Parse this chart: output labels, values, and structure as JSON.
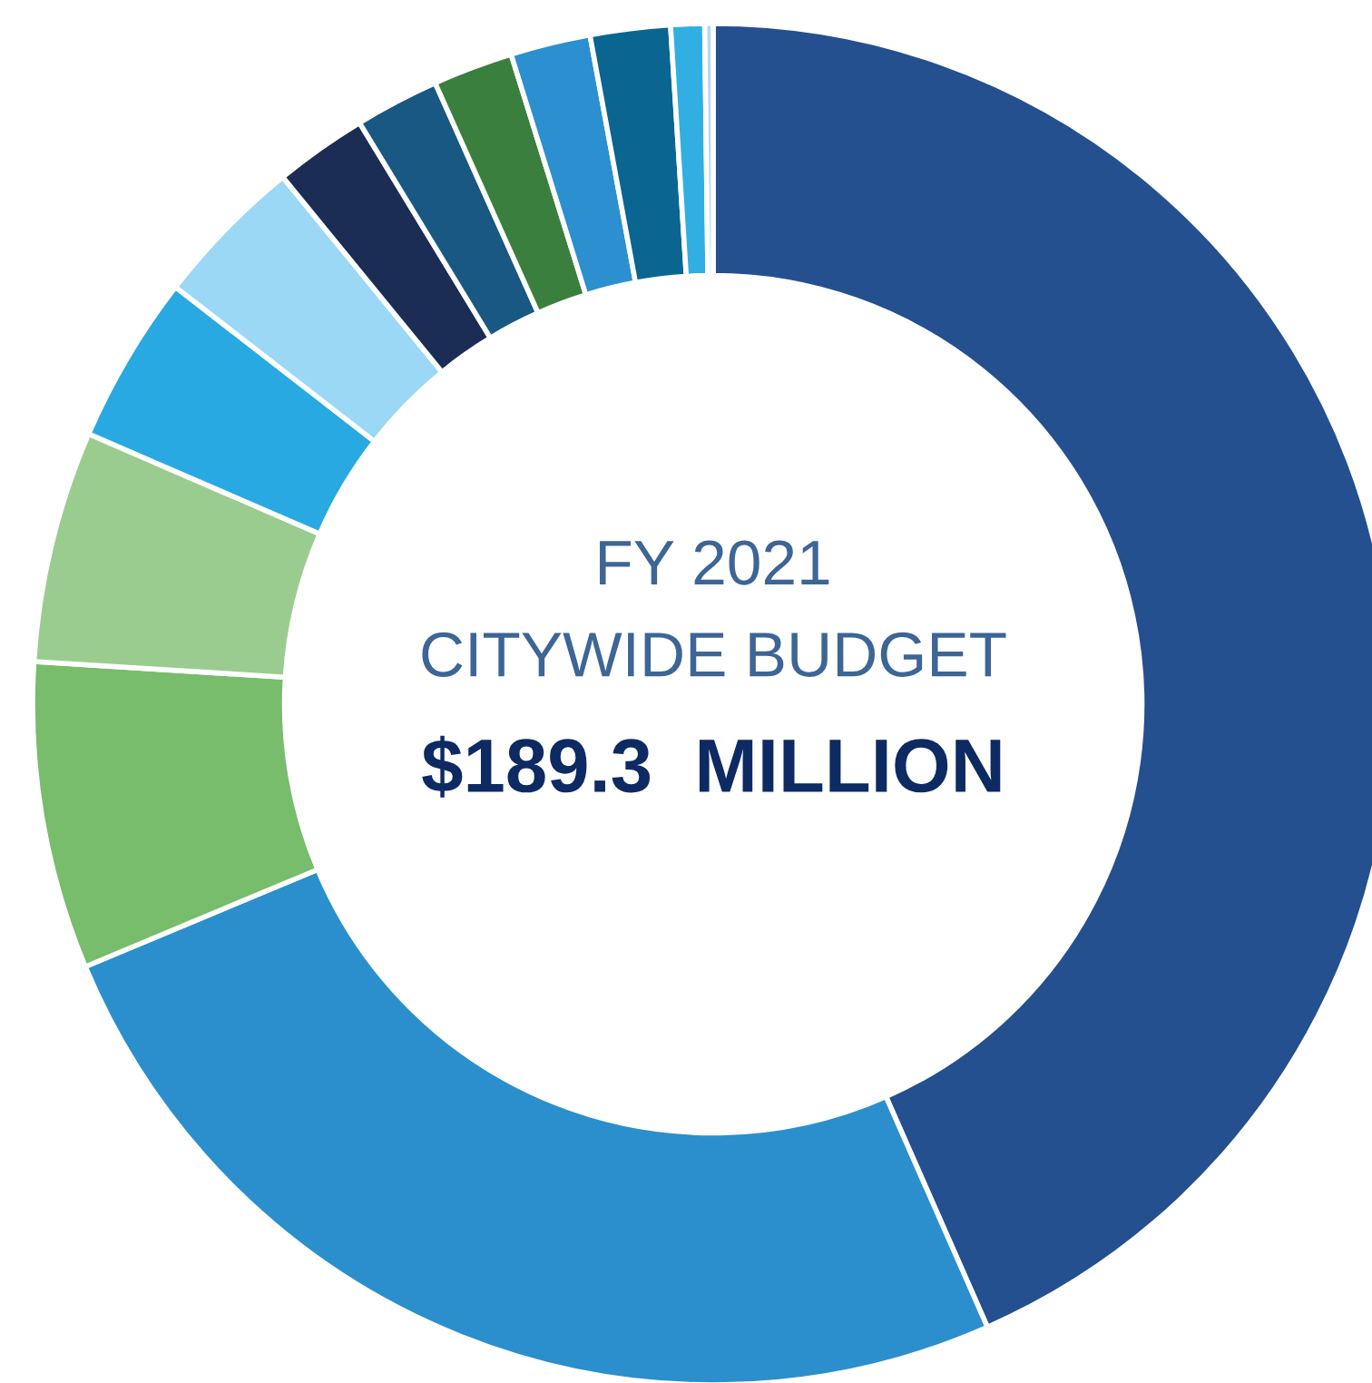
{
  "chart_data": {
    "type": "donut",
    "title": "FY 2021",
    "subtitle": "CITYWIDE BUDGET",
    "annotations": [
      "$189.3  MILLION"
    ],
    "categories": [
      null,
      null,
      null,
      null,
      null,
      null,
      null,
      null,
      null,
      null,
      null,
      null,
      null
    ],
    "values": [
      43.4,
      25.3,
      7.3,
      5.5,
      4.0,
      3.6,
      2.2,
      2.0,
      1.9,
      1.9,
      1.9,
      0.8,
      0.2
    ],
    "colors": [
      "#24508f",
      "#2b8fcd",
      "#77bd6c",
      "#9bcc8f",
      "#29a9e1",
      "#9ad8f5",
      "#1c2d55",
      "#195883",
      "#3a7f3e",
      "#2c8fd0",
      "#0a6590",
      "#31afe3",
      "#b8d8ee"
    ]
  }
}
